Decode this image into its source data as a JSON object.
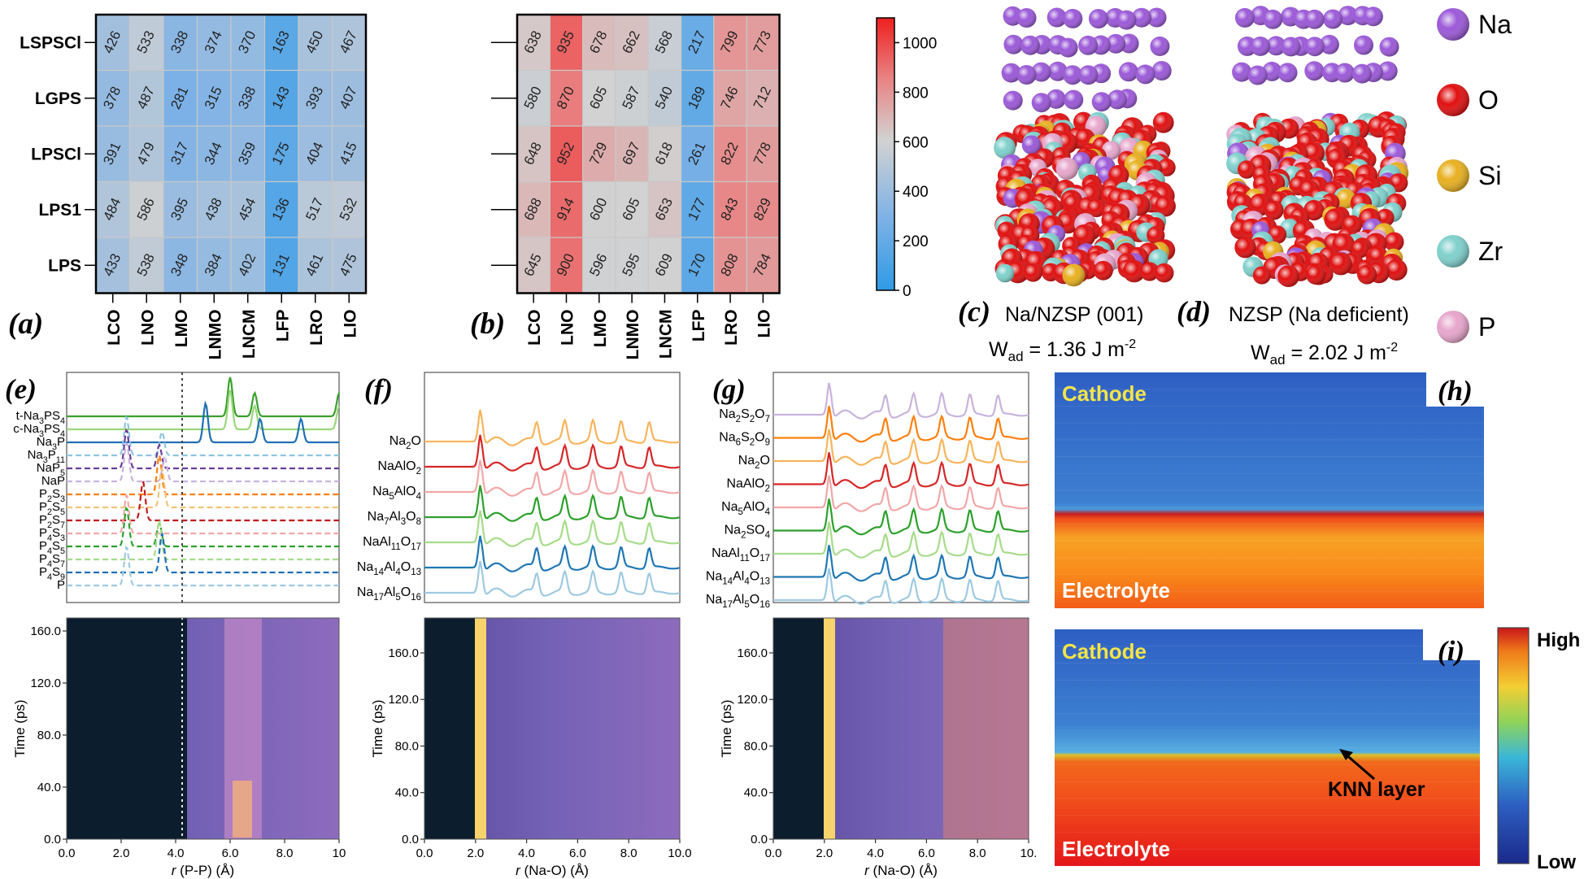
{
  "heatmaps": {
    "rows": [
      "LSPSCl",
      "LGPS",
      "LPSCl",
      "LPS1",
      "LPS"
    ],
    "cols": [
      "LCO",
      "LNO",
      "LMO",
      "LNMO",
      "LNCM",
      "LFP",
      "LRO",
      "LIO"
    ],
    "a": {
      "panel_label": "(a)",
      "values": [
        [
          426,
          533,
          338,
          374,
          370,
          163,
          450,
          467
        ],
        [
          378,
          487,
          281,
          315,
          338,
          143,
          393,
          407
        ],
        [
          391,
          479,
          317,
          344,
          359,
          175,
          404,
          415
        ],
        [
          484,
          586,
          395,
          438,
          454,
          136,
          517,
          532
        ],
        [
          433,
          538,
          348,
          384,
          402,
          131,
          461,
          475
        ]
      ]
    },
    "b": {
      "panel_label": "(b)",
      "values": [
        [
          638,
          935,
          678,
          662,
          568,
          217,
          799,
          773
        ],
        [
          580,
          870,
          605,
          587,
          540,
          189,
          746,
          712
        ],
        [
          648,
          952,
          729,
          697,
          618,
          261,
          822,
          778
        ],
        [
          688,
          914,
          600,
          605,
          653,
          177,
          843,
          829
        ],
        [
          645,
          900,
          596,
          595,
          609,
          170,
          808,
          784
        ]
      ]
    },
    "colorbar": {
      "min": 0,
      "max": 1100,
      "ticks": [
        "0",
        "200",
        "400",
        "600",
        "800",
        "1000"
      ]
    }
  },
  "structures": {
    "c": {
      "panel_label": "(c)",
      "title": "Na/NZSP (001)",
      "wad_label": "W",
      "wad_sub": "ad",
      "wad_value": " = 1.36  J m",
      "wad_exp": "-2"
    },
    "d": {
      "panel_label": "(d)",
      "title": "NZSP (Na deficient)",
      "wad_label": "W",
      "wad_sub": "ad",
      "wad_value": " = 2.02  J m",
      "wad_exp": "-2"
    },
    "legend": [
      {
        "label": "Na",
        "color": "#9b59d8"
      },
      {
        "label": "O",
        "color": "#e01010"
      },
      {
        "label": "Si",
        "color": "#e8b020"
      },
      {
        "label": "Zr",
        "color": "#7fd0cc"
      },
      {
        "label": "P",
        "color": "#e7a6cc"
      }
    ]
  },
  "chart_data": [
    {
      "type": "line",
      "panel": "(e)",
      "title": "P-P radial distribution functions",
      "xlabel": "r (P-P) (Å)",
      "series": [
        {
          "name": "t-Na3PS4",
          "style": "solid",
          "color": "#3aa02e",
          "peaks": [
            6.0,
            6.9,
            10.0
          ]
        },
        {
          "name": "c-Na3PS4",
          "style": "solid",
          "color": "#9ad87a",
          "peaks": [
            6.0,
            6.9,
            10.0
          ]
        },
        {
          "name": "Na3P",
          "style": "solid",
          "color": "#1f6fb4",
          "peaks": [
            5.1,
            7.1,
            8.6
          ]
        },
        {
          "name": "Na3P11",
          "style": "dashed",
          "color": "#8ec6e0",
          "peaks": [
            2.2,
            3.5
          ]
        },
        {
          "name": "NaP5",
          "style": "dashed",
          "color": "#6a3d9a",
          "peaks": [
            2.2,
            3.4
          ]
        },
        {
          "name": "NaP",
          "style": "dashed",
          "color": "#c9b3dc",
          "peaks": [
            2.2,
            3.6
          ]
        },
        {
          "name": "P2S3",
          "style": "dashed",
          "color": "#ff7f0e",
          "peaks": [
            3.4
          ]
        },
        {
          "name": "P2S5",
          "style": "dashed",
          "color": "#f4c27a",
          "peaks": [
            3.5
          ]
        },
        {
          "name": "P2S7",
          "style": "dashed",
          "color": "#c01c1c",
          "peaks": [
            2.8
          ]
        },
        {
          "name": "P4S3",
          "style": "dashed",
          "color": "#f2a7a7",
          "peaks": [
            2.2
          ]
        },
        {
          "name": "P4S5",
          "style": "dashed",
          "color": "#2ca02c",
          "peaks": [
            2.2,
            3.4
          ]
        },
        {
          "name": "P4S7",
          "style": "dashed",
          "color": "#a6dc8a",
          "peaks": [
            3.4
          ]
        },
        {
          "name": "P4S9",
          "style": "dashed",
          "color": "#1f6fb4",
          "peaks": [
            3.5
          ]
        },
        {
          "name": "P",
          "style": "dashed",
          "color": "#9ecae1",
          "peaks": [
            2.2
          ]
        }
      ],
      "xlim": [
        0,
        10
      ],
      "x_ticks": [
        "0.0",
        "2.0",
        "4.0",
        "6.0",
        "8.0",
        "10"
      ],
      "y_ticks": [
        "0.0",
        "40.0",
        "80.0",
        "120.0",
        "160.0"
      ],
      "ylabel": "Time (ps)",
      "ylim": [
        0,
        170
      ],
      "vline_x": 4.1
    },
    {
      "type": "line",
      "panel": "(f)",
      "xlabel": "r (Na-O) (Å)",
      "series": [
        {
          "name": "Na2O",
          "color": "#f7b45c"
        },
        {
          "name": "NaAlO2",
          "color": "#d62728"
        },
        {
          "name": "Na5AlO4",
          "color": "#f2a7a7"
        },
        {
          "name": "Na7Al3O8",
          "color": "#2ca02c"
        },
        {
          "name": "NaAl11O17",
          "color": "#a6dc8a"
        },
        {
          "name": "Na14Al4O13",
          "color": "#1f77b4"
        },
        {
          "name": "Na17Al5O16",
          "color": "#9ecae1"
        }
      ],
      "xlim": [
        0,
        10
      ],
      "x_ticks": [
        "0.0",
        "2.0",
        "4.0",
        "6.0",
        "8.0",
        "10.0"
      ],
      "y_ticks": [
        "0.0",
        "40.0",
        "80.0",
        "120.0",
        "160.0"
      ],
      "ylabel": "Time (ps)",
      "ylim": [
        0,
        190
      ],
      "heatmap_band_x": [
        2.1,
        2.3
      ]
    },
    {
      "type": "line",
      "panel": "(g)",
      "xlabel": "r (Na-O) (Å)",
      "series": [
        {
          "name": "Na2S2O7",
          "color": "#c9b3dc"
        },
        {
          "name": "Na6S2O9",
          "color": "#ff7f0e"
        },
        {
          "name": "Na2O",
          "color": "#f7b45c"
        },
        {
          "name": "NaAlO2",
          "color": "#d62728"
        },
        {
          "name": "Na5AlO4",
          "color": "#f2a7a7"
        },
        {
          "name": "Na2SO4",
          "color": "#2ca02c"
        },
        {
          "name": "NaAl11O17",
          "color": "#a6dc8a"
        },
        {
          "name": "Na14Al4O13",
          "color": "#1f77b4"
        },
        {
          "name": "Na17Al5O16",
          "color": "#9ecae1"
        }
      ],
      "xlim": [
        0,
        10
      ],
      "x_ticks": [
        "0.0",
        "2.0",
        "4.0",
        "6.0",
        "8.0",
        "10."
      ],
      "y_ticks": [
        "0.0",
        "40.0",
        "80.0",
        "120.0",
        "160.0"
      ],
      "ylabel": "Time (ps)",
      "ylim": [
        0,
        190
      ],
      "heatmap_band_x": [
        2.1,
        2.3
      ]
    }
  ],
  "contours": {
    "h": {
      "panel_label": "(h)",
      "top": "Cathode",
      "bottom": "Electrolyte"
    },
    "i": {
      "panel_label": "(i)",
      "top": "Cathode",
      "bottom": "Electrolyte",
      "arrow_label": "KNN layer"
    },
    "scale": {
      "high": "High",
      "low": "Low"
    }
  },
  "rdf_labels": {
    "e": [
      {
        "base": "t-Na",
        "sub1": "3",
        "mid": "PS",
        "sub2": "4"
      },
      {
        "base": "c-Na",
        "sub1": "3",
        "mid": "PS",
        "sub2": "4"
      },
      {
        "base": "Na",
        "sub1": "3",
        "mid": "P",
        "sub2": ""
      },
      {
        "base": "Na",
        "sub1": "3",
        "mid": "P",
        "sub2": "11"
      },
      {
        "base": "NaP",
        "sub1": "5",
        "mid": "",
        "sub2": ""
      },
      {
        "base": "NaP",
        "sub1": "",
        "mid": "",
        "sub2": ""
      },
      {
        "base": "P",
        "sub1": "2",
        "mid": "S",
        "sub2": "3"
      },
      {
        "base": "P",
        "sub1": "2",
        "mid": "S",
        "sub2": "5"
      },
      {
        "base": "P",
        "sub1": "2",
        "mid": "S",
        "sub2": "7"
      },
      {
        "base": "P",
        "sub1": "4",
        "mid": "S",
        "sub2": "3"
      },
      {
        "base": "P",
        "sub1": "4",
        "mid": "S",
        "sub2": "5"
      },
      {
        "base": "P",
        "sub1": "4",
        "mid": "S",
        "sub2": "7"
      },
      {
        "base": "P",
        "sub1": "4",
        "mid": "S",
        "sub2": "9"
      },
      {
        "base": "P",
        "sub1": "",
        "mid": "",
        "sub2": ""
      }
    ],
    "f": [
      {
        "base": "Na",
        "sub1": "2",
        "mid": "O",
        "sub2": "",
        "mid2": "",
        "sub3": ""
      },
      {
        "base": "NaAlO",
        "sub1": "2",
        "mid": "",
        "sub2": "",
        "mid2": "",
        "sub3": ""
      },
      {
        "base": "Na",
        "sub1": "5",
        "mid": "AlO",
        "sub2": "4",
        "mid2": "",
        "sub3": ""
      },
      {
        "base": "Na",
        "sub1": "7",
        "mid": "Al",
        "sub2": "3",
        "mid2": "O",
        "sub3": "8"
      },
      {
        "base": "NaAl",
        "sub1": "11",
        "mid": "O",
        "sub2": "17",
        "mid2": "",
        "sub3": ""
      },
      {
        "base": "Na",
        "sub1": "14",
        "mid": "Al",
        "sub2": "4",
        "mid2": "O",
        "sub3": "13"
      },
      {
        "base": "Na",
        "sub1": "17",
        "mid": "Al",
        "sub2": "5",
        "mid2": "O",
        "sub3": "16"
      }
    ],
    "g": [
      {
        "base": "Na",
        "sub1": "2",
        "mid": "S",
        "sub2": "2",
        "mid2": "O",
        "sub3": "7"
      },
      {
        "base": "Na",
        "sub1": "6",
        "mid": "S",
        "sub2": "2",
        "mid2": "O",
        "sub3": "9"
      },
      {
        "base": "Na",
        "sub1": "2",
        "mid": "O",
        "sub2": "",
        "mid2": "",
        "sub3": ""
      },
      {
        "base": "NaAlO",
        "sub1": "2",
        "mid": "",
        "sub2": "",
        "mid2": "",
        "sub3": ""
      },
      {
        "base": "Na",
        "sub1": "5",
        "mid": "AlO",
        "sub2": "4",
        "mid2": "",
        "sub3": ""
      },
      {
        "base": "Na",
        "sub1": "2",
        "mid": "SO",
        "sub2": "4",
        "mid2": "",
        "sub3": ""
      },
      {
        "base": "NaAl",
        "sub1": "11",
        "mid": "O",
        "sub2": "17",
        "mid2": "",
        "sub3": ""
      },
      {
        "base": "Na",
        "sub1": "14",
        "mid": "Al",
        "sub2": "4",
        "mid2": "O",
        "sub3": "13"
      },
      {
        "base": "Na",
        "sub1": "17",
        "mid": "Al",
        "sub2": "5",
        "mid2": "O",
        "sub3": "16"
      }
    ]
  },
  "axis_units": {
    "e_xlabel_r": "r",
    "e_xlabel_rest": " (P-P) (Å)",
    "f_xlabel_r": "r",
    "f_xlabel_rest": " (Na-O) (Å)",
    "g_xlabel_r": "r",
    "g_xlabel_rest": " (Na-O) (Å)",
    "time_label": "Time (ps)"
  },
  "panel_labels": {
    "e": "(e)",
    "f": "(f)",
    "g": "(g)"
  }
}
